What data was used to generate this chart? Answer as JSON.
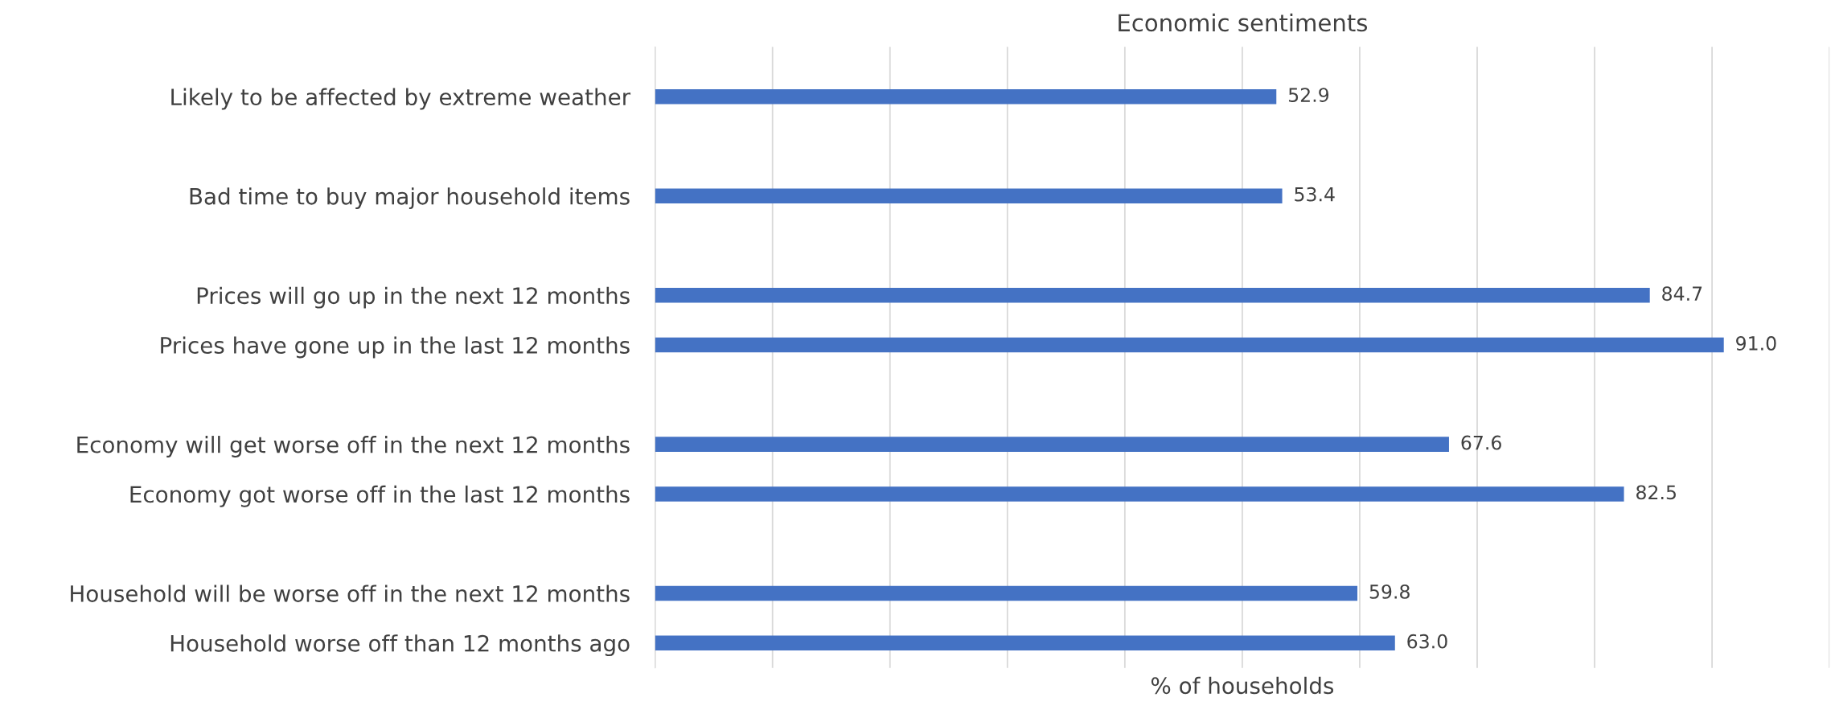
{
  "chart_data": {
    "type": "bar",
    "orientation": "horizontal",
    "title": "Economic sentiments",
    "xlabel": "% of households",
    "categories": [
      "Likely to be affected by extreme weather",
      null,
      "Bad time to buy major household items",
      null,
      "Prices will go up in the next 12 months",
      "Prices have gone up in the last 12 months",
      null,
      "Economy will get worse off in the next 12 months",
      "Economy got worse off in the last 12 months",
      null,
      "Household will be worse off in the next 12 months",
      "Household worse off than 12 months ago"
    ],
    "values": [
      52.9,
      null,
      53.4,
      null,
      84.7,
      91.0,
      null,
      67.6,
      82.5,
      null,
      59.8,
      63.0
    ],
    "value_labels": [
      "52.9",
      null,
      "53.4",
      null,
      "84.7",
      "91.0",
      null,
      "67.6",
      "82.5",
      null,
      "59.8",
      "63.0"
    ],
    "color": "#4472c4",
    "xlim": [
      0,
      100
    ],
    "xticks": [
      {
        "value": 0,
        "label": null
      },
      {
        "value": 10,
        "label": null
      },
      {
        "value": 20,
        "label": null
      },
      {
        "value": 30,
        "label": null
      },
      {
        "value": 40,
        "label": null
      },
      {
        "value": 50,
        "label": null
      },
      {
        "value": 60,
        "label": null
      },
      {
        "value": 70,
        "label": null
      },
      {
        "value": 80,
        "label": null
      },
      {
        "value": 90,
        "label": null
      },
      {
        "value": 100,
        "label": null
      }
    ],
    "tick_labels": "y",
    "grid": "x",
    "legend": false
  }
}
